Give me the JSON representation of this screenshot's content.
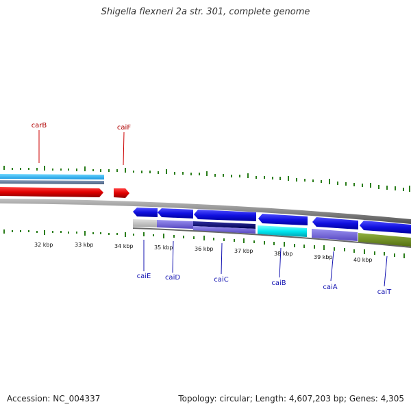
{
  "title": "Shigella flexneri 2a str. 301, complete genome",
  "footer": {
    "accession": "Accession: NC_004337",
    "summary": "Topology: circular; Length: 4,607,203 bp; Genes: 4,305"
  },
  "colors": {
    "tick": "#2a7d1a",
    "upper_label": "#b00000",
    "lower_label": "#1010b0",
    "backbone": "#888888"
  },
  "scale_labels": [
    "32 kbp",
    "33 kbp",
    "34 kbp",
    "35 kbp",
    "36 kbp",
    "37 kbp",
    "38 kbp",
    "39 kbp",
    "40 kbp"
  ],
  "upper_genes": [
    {
      "name": "carB",
      "color": "#e00000"
    },
    {
      "name": "caiF",
      "color": "#e00000"
    }
  ],
  "lower_genes": [
    {
      "name": "caiE",
      "color": "#2020e0"
    },
    {
      "name": "caiD",
      "color": "#2020e0"
    },
    {
      "name": "caiC",
      "color": "#2020e0"
    },
    {
      "name": "caiB",
      "color": "#2020e0"
    },
    {
      "name": "caiA",
      "color": "#2020e0"
    },
    {
      "name": "caiT",
      "color": "#2020e0"
    }
  ]
}
